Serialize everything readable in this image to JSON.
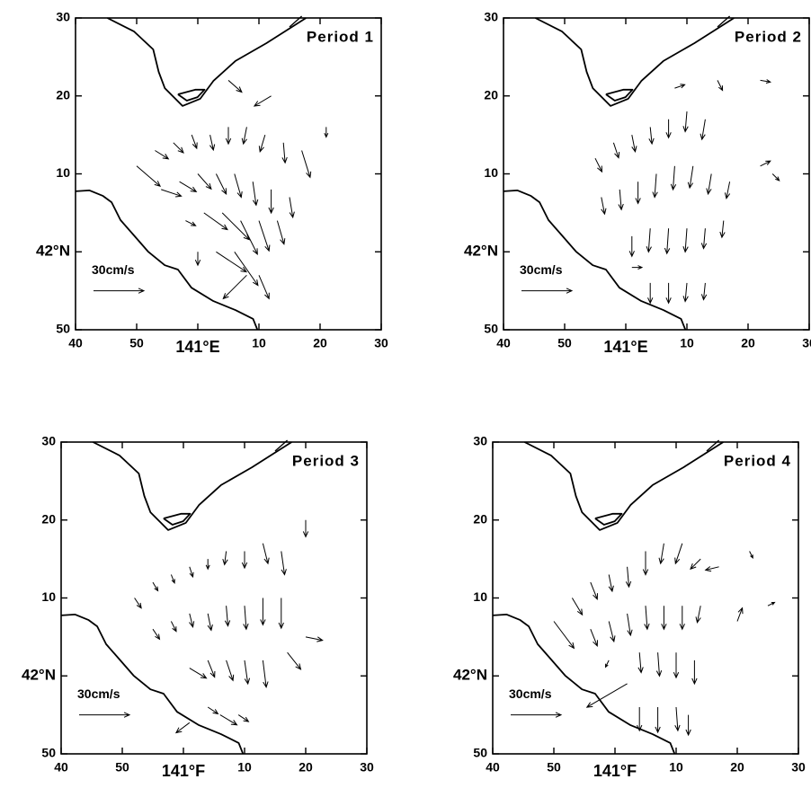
{
  "chart_data": [
    {
      "type": "quiver",
      "title": "Period 1",
      "scale_label": "30cm/s",
      "scale_speed": 30,
      "xlim": [
        40,
        90
      ],
      "ylim": [
        50,
        90
      ],
      "xticks": [
        40,
        50,
        {
          "value": 60,
          "label": "141°E"
        },
        {
          "value": 70,
          "label": "10"
        },
        {
          "value": 80,
          "label": "20"
        },
        {
          "value": 90,
          "label": "30"
        }
      ],
      "yticks": [
        50,
        {
          "value": 60,
          "label": "42°N"
        },
        {
          "value": 70,
          "label": "10"
        },
        {
          "value": 80,
          "label": "20"
        },
        {
          "value": 90,
          "label": "30"
        }
      ],
      "vectors": [
        [
          50,
          71,
          14,
          -12
        ],
        [
          53,
          73,
          8,
          -5
        ],
        [
          56,
          74,
          6,
          -6
        ],
        [
          59,
          75,
          3,
          -8
        ],
        [
          62,
          75,
          2,
          -9
        ],
        [
          65,
          76,
          0,
          -10
        ],
        [
          68,
          76,
          -2,
          -10
        ],
        [
          71,
          75,
          -3,
          -10
        ],
        [
          74,
          74,
          1,
          -12
        ],
        [
          77,
          73,
          5,
          -16
        ],
        [
          54,
          68,
          12,
          -4
        ],
        [
          57,
          69,
          10,
          -6
        ],
        [
          60,
          70,
          8,
          -9
        ],
        [
          63,
          70,
          6,
          -12
        ],
        [
          66,
          70,
          4,
          -14
        ],
        [
          69,
          69,
          2,
          -14
        ],
        [
          72,
          68,
          0,
          -14
        ],
        [
          75,
          67,
          2,
          -12
        ],
        [
          58,
          64,
          6,
          -3
        ],
        [
          61,
          65,
          14,
          -10
        ],
        [
          64,
          65,
          16,
          -16
        ],
        [
          67,
          64,
          10,
          -20
        ],
        [
          70,
          64,
          6,
          -18
        ],
        [
          73,
          64,
          4,
          -14
        ],
        [
          60,
          60,
          0,
          -8
        ],
        [
          63,
          60,
          18,
          -12
        ],
        [
          66,
          60,
          14,
          -20
        ],
        [
          68,
          57,
          -14,
          -14
        ],
        [
          70,
          57,
          6,
          -14
        ],
        [
          65,
          82,
          8,
          -7
        ],
        [
          72,
          80,
          -10,
          -6
        ],
        [
          81,
          76,
          0,
          -6
        ]
      ]
    },
    {
      "type": "quiver",
      "title": "Period 2",
      "scale_label": "30cm/s",
      "scale_speed": 30,
      "xlim": [
        40,
        90
      ],
      "ylim": [
        50,
        90
      ],
      "xticks": [
        40,
        50,
        {
          "value": 60,
          "label": "141°E"
        },
        {
          "value": 70,
          "label": "10"
        },
        {
          "value": 80,
          "label": "20"
        },
        {
          "value": 90,
          "label": "30"
        }
      ],
      "yticks": [
        50,
        {
          "value": 60,
          "label": "42°N"
        },
        {
          "value": 70,
          "label": "10"
        },
        {
          "value": 80,
          "label": "20"
        },
        {
          "value": 90,
          "label": "30"
        }
      ],
      "vectors": [
        [
          55,
          72,
          4,
          -8
        ],
        [
          58,
          74,
          3,
          -9
        ],
        [
          61,
          75,
          2,
          -10
        ],
        [
          64,
          76,
          1,
          -10
        ],
        [
          67,
          77,
          0,
          -11
        ],
        [
          70,
          78,
          -1,
          -12
        ],
        [
          73,
          77,
          -2,
          -12
        ],
        [
          56,
          67,
          2,
          -10
        ],
        [
          59,
          68,
          1,
          -12
        ],
        [
          62,
          69,
          0,
          -13
        ],
        [
          65,
          70,
          -1,
          -14
        ],
        [
          68,
          71,
          -1,
          -14
        ],
        [
          71,
          71,
          -2,
          -13
        ],
        [
          74,
          70,
          -2,
          -12
        ],
        [
          77,
          69,
          -2,
          -10
        ],
        [
          61,
          62,
          0,
          -12
        ],
        [
          64,
          63,
          -1,
          -14
        ],
        [
          67,
          63,
          -1,
          -15
        ],
        [
          70,
          63,
          -1,
          -14
        ],
        [
          73,
          63,
          -1,
          -12
        ],
        [
          76,
          64,
          -1,
          -10
        ],
        [
          64,
          56,
          0,
          -12
        ],
        [
          67,
          56,
          0,
          -12
        ],
        [
          70,
          56,
          -1,
          -11
        ],
        [
          73,
          56,
          -1,
          -10
        ],
        [
          61,
          58,
          6,
          0
        ],
        [
          68,
          81,
          6,
          2
        ],
        [
          75,
          82,
          3,
          -6
        ],
        [
          82,
          82,
          6,
          -1
        ],
        [
          82,
          71,
          6,
          3
        ],
        [
          84,
          70,
          4,
          -4
        ]
      ]
    },
    {
      "type": "quiver",
      "title": "Period 3",
      "scale_label": "30cm/s",
      "scale_speed": 30,
      "xlim": [
        40,
        90
      ],
      "ylim": [
        50,
        90
      ],
      "xticks": [
        40,
        50,
        {
          "value": 60,
          "label": "141°F"
        },
        {
          "value": 70,
          "label": "10"
        },
        {
          "value": 80,
          "label": "20"
        },
        {
          "value": 90,
          "label": "30"
        }
      ],
      "yticks": [
        50,
        {
          "value": 60,
          "label": "42°N"
        },
        {
          "value": 70,
          "label": "10"
        },
        {
          "value": 80,
          "label": "20"
        },
        {
          "value": 90,
          "label": "30"
        }
      ],
      "vectors": [
        [
          52,
          70,
          4,
          -6
        ],
        [
          55,
          72,
          3,
          -5
        ],
        [
          58,
          73,
          2,
          -5
        ],
        [
          61,
          74,
          2,
          -6
        ],
        [
          64,
          75,
          0,
          -6
        ],
        [
          67,
          76,
          -1,
          -8
        ],
        [
          70,
          76,
          0,
          -10
        ],
        [
          73,
          77,
          3,
          -12
        ],
        [
          76,
          76,
          2,
          -14
        ],
        [
          80,
          80,
          0,
          -10
        ],
        [
          55,
          66,
          4,
          -6
        ],
        [
          58,
          67,
          3,
          -6
        ],
        [
          61,
          68,
          2,
          -8
        ],
        [
          64,
          68,
          2,
          -10
        ],
        [
          67,
          69,
          1,
          -12
        ],
        [
          70,
          69,
          1,
          -14
        ],
        [
          73,
          70,
          0,
          -16
        ],
        [
          76,
          70,
          0,
          -18
        ],
        [
          61,
          61,
          10,
          -6
        ],
        [
          64,
          62,
          4,
          -10
        ],
        [
          67,
          62,
          4,
          -12
        ],
        [
          70,
          62,
          2,
          -14
        ],
        [
          73,
          62,
          2,
          -16
        ],
        [
          77,
          63,
          8,
          -10
        ],
        [
          64,
          56,
          6,
          -4
        ],
        [
          66,
          55,
          10,
          -6
        ],
        [
          69,
          55,
          6,
          -4
        ],
        [
          61,
          54,
          -8,
          -6
        ],
        [
          80,
          65,
          10,
          -2
        ]
      ]
    },
    {
      "type": "quiver",
      "title": "Period 4",
      "scale_label": "30cm/s",
      "scale_speed": 30,
      "xlim": [
        40,
        90
      ],
      "ylim": [
        50,
        90
      ],
      "xticks": [
        40,
        50,
        {
          "value": 60,
          "label": "141°F"
        },
        {
          "value": 70,
          "label": "10"
        },
        {
          "value": 80,
          "label": "20"
        },
        {
          "value": 90,
          "label": "30"
        }
      ],
      "yticks": [
        50,
        {
          "value": 60,
          "label": "42°N"
        },
        {
          "value": 70,
          "label": "10"
        },
        {
          "value": 80,
          "label": "20"
        },
        {
          "value": 90,
          "label": "30"
        }
      ],
      "vectors": [
        [
          53,
          70,
          6,
          -10
        ],
        [
          56,
          72,
          4,
          -10
        ],
        [
          59,
          73,
          2,
          -10
        ],
        [
          62,
          74,
          1,
          -12
        ],
        [
          65,
          76,
          0,
          -14
        ],
        [
          68,
          77,
          -2,
          -12
        ],
        [
          71,
          77,
          -4,
          -12
        ],
        [
          74,
          75,
          -6,
          -6
        ],
        [
          77,
          74,
          -8,
          -2
        ],
        [
          56,
          66,
          4,
          -10
        ],
        [
          59,
          67,
          3,
          -12
        ],
        [
          62,
          68,
          2,
          -13
        ],
        [
          65,
          69,
          1,
          -14
        ],
        [
          68,
          69,
          0,
          -14
        ],
        [
          71,
          69,
          0,
          -14
        ],
        [
          74,
          69,
          -2,
          -10
        ],
        [
          80,
          67,
          3,
          8
        ],
        [
          59,
          62,
          -2,
          -4
        ],
        [
          64,
          63,
          1,
          -12
        ],
        [
          67,
          63,
          1,
          -14
        ],
        [
          70,
          63,
          0,
          -15
        ],
        [
          73,
          62,
          0,
          -14
        ],
        [
          62,
          59,
          -24,
          -14
        ],
        [
          64,
          56,
          0,
          -14
        ],
        [
          67,
          56,
          0,
          -15
        ],
        [
          70,
          56,
          1,
          -14
        ],
        [
          72,
          55,
          0,
          -12
        ],
        [
          82,
          76,
          2,
          -4
        ],
        [
          85,
          69,
          4,
          2
        ],
        [
          50,
          67,
          12,
          -16
        ]
      ]
    }
  ]
}
